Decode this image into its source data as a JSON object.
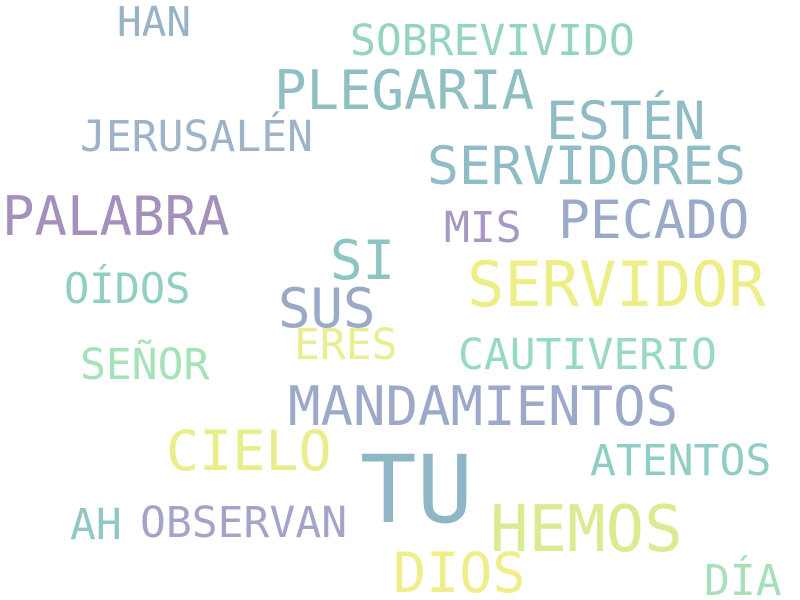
{
  "words": [
    {
      "text": "HAN",
      "color": "#98b3c4"
    },
    {
      "text": "SOBREVIVIDO",
      "color": "#95d3c2"
    },
    {
      "text": "PLEGARIA",
      "color": "#8fbfc3"
    },
    {
      "text": "ESTÉN",
      "color": "#92bcc5"
    },
    {
      "text": "JERUSALÉN",
      "color": "#9fb3c8"
    },
    {
      "text": "SERVIDORES",
      "color": "#8fbcc5"
    },
    {
      "text": "PALABRA",
      "color": "#a58fbb"
    },
    {
      "text": "PECADO",
      "color": "#9aaac8"
    },
    {
      "text": "MIS",
      "color": "#a797c4"
    },
    {
      "text": "SI",
      "color": "#8cc5c3"
    },
    {
      "text": "SERVIDOR",
      "color": "#eeee88"
    },
    {
      "text": "OÍDOS",
      "color": "#91cfc1"
    },
    {
      "text": "SUS",
      "color": "#9aa9c8"
    },
    {
      "text": "ERES",
      "color": "#e9ee93"
    },
    {
      "text": "CAUTIVERIO",
      "color": "#98dac0"
    },
    {
      "text": "SEÑOR",
      "color": "#a6e2b8"
    },
    {
      "text": "MANDAMIENTOS",
      "color": "#9ca9c9"
    },
    {
      "text": "CIELO",
      "color": "#e8ee8a"
    },
    {
      "text": "TU",
      "color": "#8fb6c4"
    },
    {
      "text": "ATENTOS",
      "color": "#8fcdc5"
    },
    {
      "text": "AH",
      "color": "#93c6c6"
    },
    {
      "text": "OBSERVAN",
      "color": "#a4a4cb"
    },
    {
      "text": "HEMOS",
      "color": "#d9ec92"
    },
    {
      "text": "DIOS",
      "color": "#f0ee8a"
    },
    {
      "text": "DÍA",
      "color": "#a7e0b9"
    }
  ]
}
